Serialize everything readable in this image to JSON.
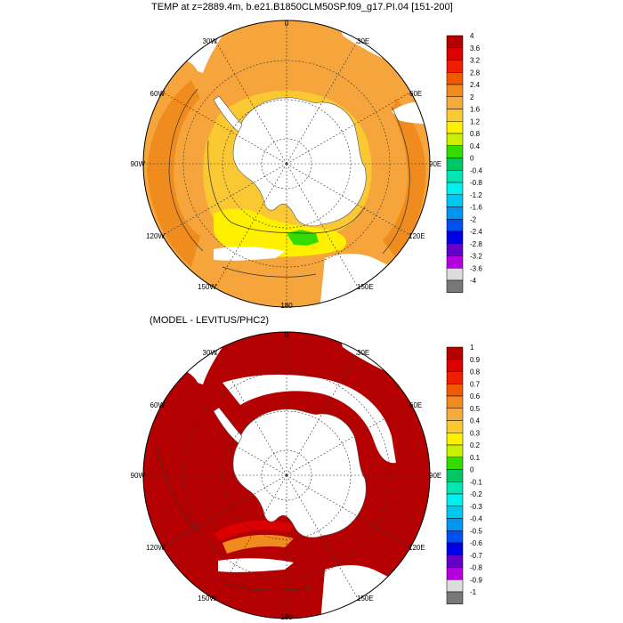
{
  "top_panel": {
    "title": "TEMP at z=2889.4m, b.e21.B1850CLM50SP.f09_g17.PI.04 [151-200]",
    "lon_labels": [
      "0",
      "30E",
      "60E",
      "90E",
      "120E",
      "150E",
      "180",
      "150W",
      "120W",
      "90W",
      "60W",
      "30W"
    ],
    "colorbar_labels": [
      "4",
      "3.6",
      "3.2",
      "2.8",
      "2.4",
      "2",
      "1.6",
      "1.2",
      "0.8",
      "0.4",
      "0",
      "-0.4",
      "-0.8",
      "-1.2",
      "-1.6",
      "-2",
      "-2.4",
      "-2.8",
      "-3.2",
      "-3.6",
      "-4"
    ]
  },
  "bottom_panel": {
    "title": "(MODEL - LEVITUS/PHC2)",
    "lon_labels": [
      "0",
      "30E",
      "60E",
      "90E",
      "120E",
      "150E",
      "180",
      "150W",
      "120W",
      "90W",
      "60W",
      "30W"
    ],
    "colorbar_labels": [
      "1",
      "0.9",
      "0.8",
      "0.7",
      "0.6",
      "0.5",
      "0.4",
      "0.3",
      "0.2",
      "0.1",
      "0",
      "-0.1",
      "-0.2",
      "-0.3",
      "-0.4",
      "-0.5",
      "-0.6",
      "-0.7",
      "-0.8",
      "-0.9",
      "-1"
    ]
  },
  "colors": {
    "palette": [
      "#b40000",
      "#dc0000",
      "#f01e00",
      "#f05a00",
      "#f08c1e",
      "#f5aa3c",
      "#fac832",
      "#fff000",
      "#c8f000",
      "#32dc00",
      "#00c864",
      "#00e6b4",
      "#00f0f0",
      "#00c8f0",
      "#0096f0",
      "#0050f0",
      "#0000e6",
      "#6400c8",
      "#b400dc",
      "#dcdcdc",
      "#787878"
    ],
    "ocean_top": "#f5a53c",
    "ocean_bottom": "#b40000",
    "land": "#ffffff"
  }
}
